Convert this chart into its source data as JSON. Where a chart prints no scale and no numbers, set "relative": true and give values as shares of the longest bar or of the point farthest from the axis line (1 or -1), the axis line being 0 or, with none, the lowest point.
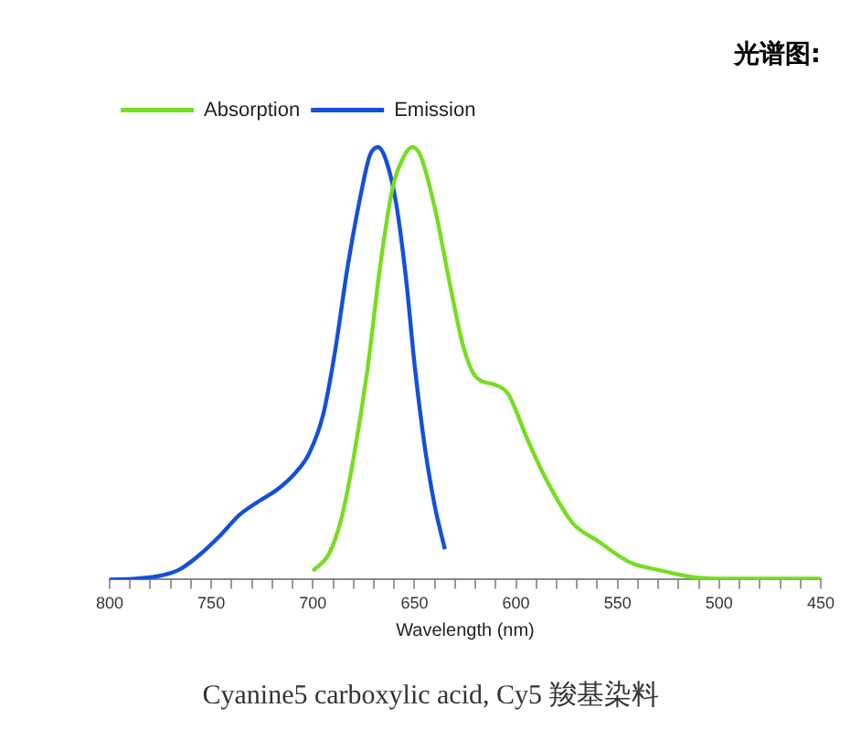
{
  "chart_data": {
    "type": "line",
    "title": "光谱图:",
    "xlabel": "Wavelength (nm)",
    "relative": true,
    "legend": "top left",
    "marker": "none",
    "line_style": "solid",
    "grid": false,
    "annotations": [
      "Cyanine5 carboxylic acid, Cy5 羧基染料"
    ],
    "xlim": [
      800,
      450
    ],
    "xticks": [
      800,
      {
        "value": 790,
        "label": null
      },
      {
        "value": 780,
        "label": null
      },
      {
        "value": 770,
        "label": null
      },
      {
        "value": 760,
        "label": null
      },
      750,
      {
        "value": 740,
        "label": null
      },
      {
        "value": 730,
        "label": null
      },
      {
        "value": 720,
        "label": null
      },
      {
        "value": 710,
        "label": null
      },
      700,
      {
        "value": 690,
        "label": null
      },
      {
        "value": 680,
        "label": null
      },
      {
        "value": 670,
        "label": null
      },
      {
        "value": 660,
        "label": null
      },
      650,
      {
        "value": 640,
        "label": null
      },
      {
        "value": 630,
        "label": null
      },
      {
        "value": 620,
        "label": null
      },
      {
        "value": 610,
        "label": null
      },
      600,
      {
        "value": 590,
        "label": null
      },
      {
        "value": 580,
        "label": null
      },
      {
        "value": 570,
        "label": null
      },
      {
        "value": 560,
        "label": null
      },
      550,
      {
        "value": 540,
        "label": null
      },
      {
        "value": 530,
        "label": null
      },
      {
        "value": 520,
        "label": null
      },
      {
        "value": 510,
        "label": null
      },
      500,
      {
        "value": 490,
        "label": null
      },
      {
        "value": 480,
        "label": null
      },
      {
        "value": 470,
        "label": null
      },
      {
        "value": 460,
        "label": null
      },
      450
    ],
    "series": [
      {
        "name": "Absorption",
        "color": "#77dd22",
        "x": [
          700,
          692,
          686,
          680,
          673,
          667,
          661,
          655,
          651,
          647,
          640,
          632,
          626,
          620,
          610,
          604,
          594,
          585,
          572,
          560,
          544,
          528,
          512,
          497,
          450
        ],
        "values": [
          0.02,
          0.06,
          0.14,
          0.28,
          0.49,
          0.72,
          0.9,
          0.98,
          1,
          0.98,
          0.86,
          0.67,
          0.54,
          0.47,
          0.45,
          0.43,
          0.32,
          0.23,
          0.13,
          0.09,
          0.04,
          0.02,
          0.005,
          0.002,
          0.002
        ]
      },
      {
        "name": "Emission",
        "color": "#1450d8",
        "x": [
          800,
          787,
          774,
          765,
          755,
          746,
          736,
          727,
          717,
          708,
          702,
          695,
          689,
          683,
          676,
          672,
          668,
          664,
          659,
          654,
          650,
          645,
          640,
          635
        ],
        "values": [
          0,
          0.002,
          0.01,
          0.025,
          0.06,
          0.1,
          0.15,
          0.18,
          0.21,
          0.25,
          0.29,
          0.38,
          0.53,
          0.72,
          0.9,
          0.98,
          1,
          0.97,
          0.87,
          0.69,
          0.5,
          0.31,
          0.17,
          0.07
        ]
      }
    ]
  }
}
